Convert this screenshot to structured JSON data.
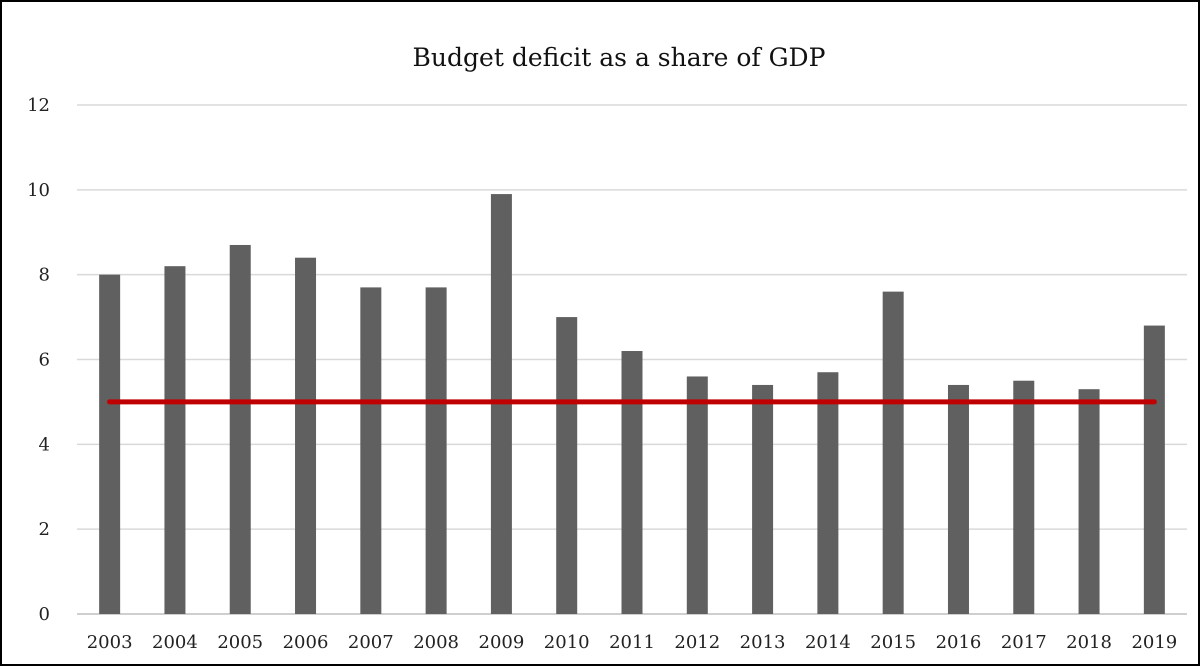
{
  "chart_data": {
    "type": "bar",
    "title": "Budget deficit as a share of GDP",
    "xlabel": "",
    "ylabel": "",
    "categories": [
      "2003",
      "2004",
      "2005",
      "2006",
      "2007",
      "2008",
      "2009",
      "2010",
      "2011",
      "2012",
      "2013",
      "2014",
      "2015",
      "2016",
      "2017",
      "2018",
      "2019"
    ],
    "series": [
      {
        "values": [
          8.0,
          8.2,
          8.7,
          8.4,
          7.7,
          7.7,
          9.9,
          7.0,
          6.2,
          5.6,
          5.4,
          5.7,
          7.6,
          5.4,
          5.5,
          5.3,
          6.8
        ],
        "color": "#606060"
      }
    ],
    "reference_line": {
      "value": 5,
      "color": "#c00000"
    },
    "ylim": [
      0,
      12
    ],
    "yticks": [
      0,
      2,
      4,
      6,
      8,
      10,
      12
    ],
    "grid": true,
    "legend": "none"
  }
}
